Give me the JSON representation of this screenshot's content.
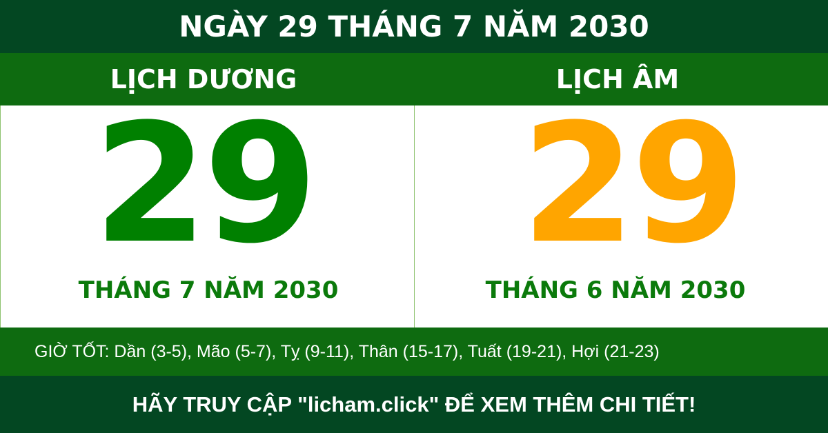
{
  "title": "NGÀY 29 THÁNG 7 NĂM 2030",
  "solar": {
    "label": "LỊCH DƯƠNG",
    "day": "29",
    "month_year": "THÁNG 7 NĂM 2030"
  },
  "lunar": {
    "label": "LỊCH ÂM",
    "day": "29",
    "month_year": "THÁNG 6 NĂM 2030"
  },
  "good_hours": "GIỜ TỐT: Dần (3-5), Mão (5-7), Tỵ (9-11), Thân (15-17), Tuất (19-21), Hợi (21-23)",
  "footer": "HÃY TRUY CẬP \"licham.click\" ĐỂ XEM THÊM CHI TIẾT!",
  "colors": {
    "dark_green": "#034722",
    "band_green": "#0e6b10",
    "solar_day": "#008000",
    "lunar_day": "#ffa500",
    "month_text": "#0b7a0b"
  }
}
